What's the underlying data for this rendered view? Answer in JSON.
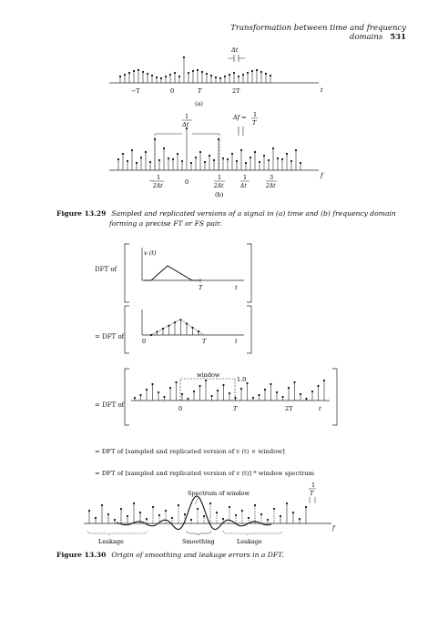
{
  "header": {
    "title": "Transformation between time and frequency domains",
    "page_number": "531"
  },
  "fig1329": {
    "a": {
      "sub_label": "(a)",
      "dt_label": "Δt",
      "ticks": [
        "−T",
        "0",
        "T",
        "2T"
      ],
      "axis_label": "t"
    },
    "b": {
      "sub_label": "(b)",
      "top_label": "1",
      "top_label_den": "Δt",
      "df_label": "Δf =",
      "df_num": "1",
      "df_den": "T",
      "ticks": [
        {
          "pre": "−",
          "num": "1",
          "den": "2Δt"
        },
        {
          "pre": "",
          "num": "0",
          "den": ""
        },
        {
          "pre": "",
          "num": "1",
          "den": "2Δt"
        },
        {
          "pre": "",
          "num": "1",
          "den": "Δt"
        },
        {
          "pre": "",
          "num": "3",
          "den": "2Δt"
        }
      ],
      "axis_label": "f"
    },
    "caption_num": "Figure 13.29",
    "caption_line1": "Sampled and replicated versions of a signal in (a) time and (b) frequency domain",
    "caption_line2": "forming a precise FT or FS pair."
  },
  "fig1330": {
    "row1": {
      "label": "DFT of",
      "ylabel": "v (t)",
      "tick_T": "T",
      "axis_t": "t"
    },
    "row2": {
      "label": "= DFT of",
      "tick_0": "0",
      "tick_T": "T",
      "axis_t": "t"
    },
    "row3": {
      "label": "= DFT of",
      "window": "window",
      "one": "1.0",
      "tick_0": "0",
      "tick_T": "T",
      "tick_2T": "2T",
      "axis_t": "t"
    },
    "eq1": "= DFT of [sampled and replicated version of v (t) × window]",
    "eq2": "= DFT of [sampled and replicated version of v (t)] * window spectrum",
    "spectrum": {
      "label": "Spectrum of window",
      "period_num": "1",
      "period_den": "T",
      "axis_f": "f",
      "leakage_left": "Leakage",
      "smoothing": "Smoothing",
      "leakage_right": "Leakage"
    },
    "caption_num": "Figure 13.30",
    "caption": "Origin of smoothing and leakage errors in a DFT."
  }
}
